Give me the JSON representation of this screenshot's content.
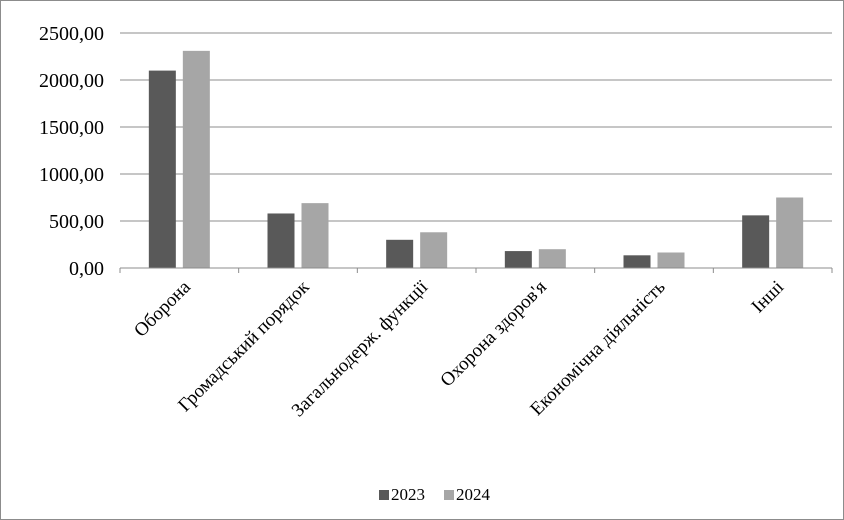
{
  "chart_data": {
    "type": "bar",
    "categories": [
      "Оборона",
      "Громадський порядок",
      "Загальнодерж. функції",
      "Охорона здоров'я",
      "Економічна діяльність",
      "Інші"
    ],
    "series": [
      {
        "name": "2023",
        "values": [
          2100,
          580,
          300,
          180,
          135,
          560
        ],
        "color": "#595959"
      },
      {
        "name": "2024",
        "values": [
          2310,
          690,
          380,
          200,
          165,
          750
        ],
        "color": "#a6a6a6"
      }
    ],
    "ylim": [
      0,
      2500
    ],
    "yticks": [
      0,
      500,
      1000,
      1500,
      2000,
      2500
    ],
    "ytick_labels": [
      "0,00",
      "500,00",
      "1000,00",
      "1500,00",
      "2000,00",
      "2500,00"
    ],
    "title": "",
    "xlabel": "",
    "ylabel": "",
    "grid": true,
    "legend_position": "bottom"
  }
}
